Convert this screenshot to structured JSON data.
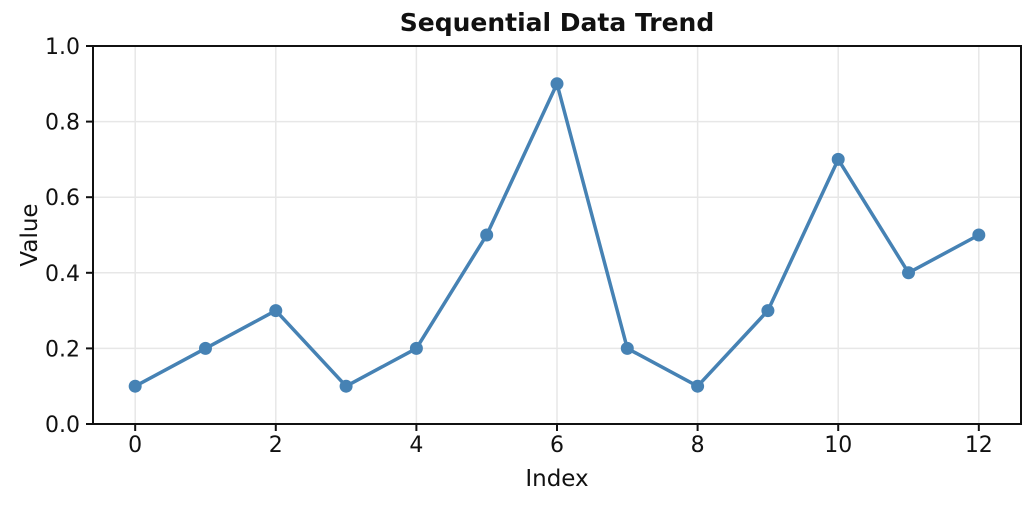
{
  "chart_data": {
    "type": "line",
    "title": "Sequential Data Trend",
    "xlabel": "Index",
    "ylabel": "Value",
    "x": [
      0,
      1,
      2,
      3,
      4,
      5,
      6,
      7,
      8,
      9,
      10,
      11,
      12
    ],
    "values": [
      0.1,
      0.2,
      0.3,
      0.1,
      0.2,
      0.5,
      0.9,
      0.2,
      0.1,
      0.3,
      0.7,
      0.4,
      0.5
    ],
    "series_name": "sequential-values",
    "xlim": [
      -0.6,
      12.6
    ],
    "ylim": [
      0,
      1.0
    ],
    "xticks": {
      "values": [
        0,
        2,
        4,
        6,
        8,
        10,
        12
      ],
      "labels": [
        "0",
        "2",
        "4",
        "6",
        "8",
        "10",
        "12"
      ]
    },
    "yticks": {
      "values": [
        0,
        0.2,
        0.4,
        0.6,
        0.8,
        1.0
      ],
      "labels": [
        "0.0",
        "0.2",
        "0.4",
        "0.6",
        "0.8",
        "1.0"
      ]
    },
    "grid": true,
    "legend_position": "none",
    "marker": "circle",
    "colors": {
      "line": "#4682B4",
      "marker": "#4682B4",
      "grid": "#e7e7e7",
      "spine": "#111111",
      "text": "#111111",
      "background": "#ffffff"
    }
  }
}
